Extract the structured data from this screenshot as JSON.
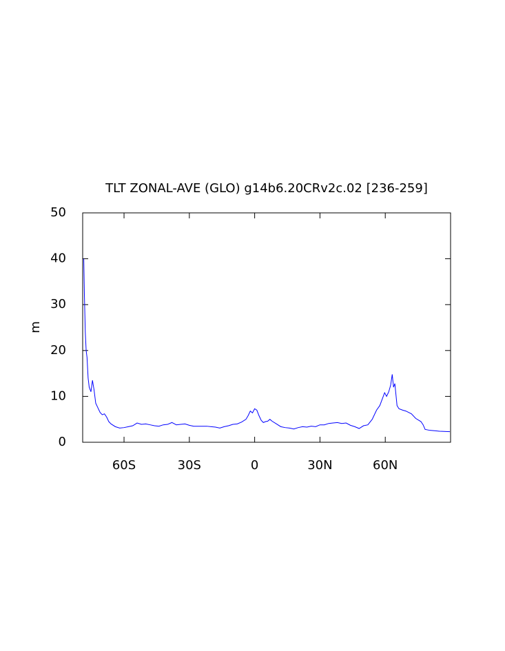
{
  "chart_data": {
    "type": "line",
    "title": "TLT ZONAL-AVE (GLO) g14b6.20CRv2c.02 [236-259]",
    "y_label": "m",
    "xlim": [
      -79,
      90
    ],
    "ylim": [
      0,
      50
    ],
    "xticks": [
      {
        "value": -60,
        "label": "60S"
      },
      {
        "value": -30,
        "label": "30S"
      },
      0,
      {
        "value": 30,
        "label": "30N"
      },
      {
        "value": 60,
        "label": "60N"
      }
    ],
    "yticks": [
      0,
      10,
      20,
      30,
      40,
      50
    ],
    "grid": false,
    "x": [
      -78.5,
      -78.2,
      -77.8,
      -77.4,
      -77,
      -76.5,
      -76,
      -75.2,
      -74.5,
      -73.8,
      -73,
      -72,
      -71,
      -70,
      -69,
      -68,
      -67,
      -66,
      -64,
      -62,
      -60,
      -58,
      -56,
      -54,
      -52,
      -50,
      -48,
      -46,
      -44,
      -42,
      -40,
      -38,
      -36,
      -34,
      -32,
      -30,
      -28,
      -26,
      -24,
      -22,
      -20,
      -18,
      -16,
      -14,
      -12,
      -10,
      -8,
      -6,
      -4,
      -3,
      -2,
      -1,
      0,
      1,
      2,
      3,
      4,
      5,
      6,
      7,
      8,
      10,
      12,
      14,
      16,
      18,
      20,
      22,
      24,
      26,
      28,
      30,
      32,
      34,
      36,
      38,
      40,
      42,
      44,
      46,
      48,
      50,
      52,
      54,
      56,
      57.5,
      59.7,
      60.6,
      61.6,
      62.5,
      63.2,
      63.8,
      64.4,
      65.4,
      66.3,
      68,
      69.5,
      72,
      74,
      76.4,
      77.4,
      78.3,
      80.5,
      85,
      89.7
    ],
    "series": [
      {
        "color": "#0000ff",
        "values": [
          40,
          32,
          24,
          20,
          18.5,
          14,
          12,
          11,
          13.5,
          11.5,
          8.5,
          7.5,
          6.5,
          6,
          6.2,
          5.5,
          4.5,
          4,
          3.4,
          3.1,
          3.2,
          3.4,
          3.6,
          4.2,
          3.9,
          4,
          3.8,
          3.6,
          3.5,
          3.8,
          3.9,
          4.3,
          3.8,
          3.9,
          4,
          3.7,
          3.5,
          3.5,
          3.5,
          3.5,
          3.4,
          3.3,
          3.1,
          3.4,
          3.6,
          3.9,
          4,
          4.4,
          5,
          5.8,
          6.8,
          6.4,
          7.3,
          7,
          5.8,
          4.8,
          4.3,
          4.5,
          4.6,
          5,
          4.6,
          4,
          3.4,
          3.2,
          3.1,
          2.9,
          3.2,
          3.4,
          3.3,
          3.5,
          3.4,
          3.8,
          3.8,
          4.1,
          4.2,
          4.3,
          4.1,
          4.2,
          3.7,
          3.4,
          3,
          3.6,
          3.8,
          5,
          7,
          8,
          10.8,
          10,
          11,
          12.5,
          14.8,
          12,
          12.8,
          8,
          7.3,
          7,
          6.8,
          6.2,
          5.2,
          4.5,
          3.8,
          2.8,
          2.6,
          2.4,
          2.3
        ]
      }
    ]
  }
}
